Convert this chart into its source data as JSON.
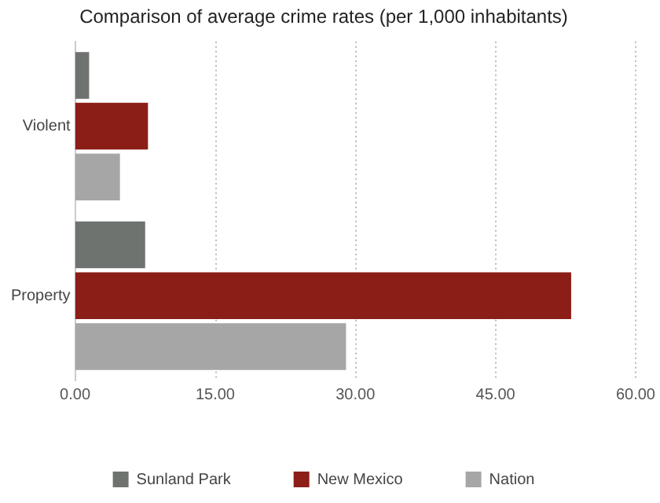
{
  "chart_data": {
    "type": "bar",
    "orientation": "horizontal",
    "title": "Comparison of average crime rates (per 1,000 inhabitants)",
    "categories": [
      "Violent",
      "Property"
    ],
    "series": [
      {
        "name": "Sunland Park",
        "color": "#6f7370",
        "values": [
          1.5,
          7.5
        ]
      },
      {
        "name": "New Mexico",
        "color": "#8b1e17",
        "values": [
          7.8,
          53.1
        ]
      },
      {
        "name": "Nation",
        "color": "#a6a6a6",
        "values": [
          4.8,
          29.0
        ]
      }
    ],
    "xlim": [
      0,
      60
    ],
    "xticks": [
      {
        "value": 0,
        "label": "0.00"
      },
      {
        "value": 15,
        "label": "15.00"
      },
      {
        "value": 30,
        "label": "30.00"
      },
      {
        "value": 45,
        "label": "45.00"
      },
      {
        "value": 60,
        "label": "60.00"
      }
    ],
    "grid": "x",
    "legend": "bottom",
    "line_style": "dotted"
  }
}
